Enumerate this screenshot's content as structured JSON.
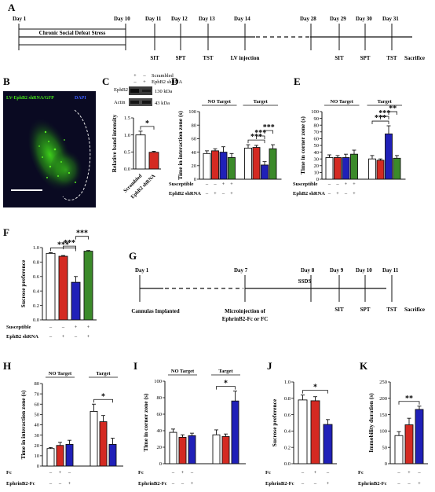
{
  "colors": {
    "white": "#ffffff",
    "red": "#d42a22",
    "blue": "#2020b8",
    "green": "#3b8a2a",
    "axis": "#111111",
    "micro_bg": "#0a0a22",
    "micro_green": "#43e019"
  },
  "panelA": {
    "label": "A",
    "days": [
      "Day 1",
      "Day 10",
      "Day 11",
      "Day 12",
      "Day 13",
      "Day 14",
      "Day 28",
      "Day 29",
      "Day 30",
      "Day 31"
    ],
    "bar_text": "Chronic Social Defeat Stress",
    "events": [
      "SIT",
      "SPT",
      "TST",
      "LV injection",
      "SIT",
      "SPT",
      "TST",
      "Sacrifice"
    ]
  },
  "panelB": {
    "label": "B",
    "title": "LV-EphB2 shRNA/GFP",
    "dapi": "DAPI"
  },
  "panelC": {
    "label": "C",
    "rows": [
      "Scrambled",
      "EphB2 shRNA"
    ],
    "signs": [
      [
        "+",
        "–"
      ],
      [
        "–",
        "+"
      ]
    ],
    "blot_labels": [
      "EphB2",
      "Actin"
    ],
    "kda": [
      "130 kDa",
      "43 kDa"
    ],
    "sig": "*"
  },
  "panelG": {
    "label": "G",
    "days": [
      "Day 1",
      "Day 7",
      "Day 8",
      "Day 9",
      "Day 10",
      "Day 11"
    ],
    "events": [
      "Cannulas Implanted",
      "Microinjection of",
      "EphrinB2-Fc or FC",
      "SSDS",
      "SIT",
      "SPT",
      "TST",
      "Sacrifice"
    ]
  },
  "chart_data": [
    {
      "panel": "C",
      "type": "bar",
      "ylabel": "Relative band intensity",
      "ylim": [
        0,
        1.5
      ],
      "yticks": [
        0,
        0.5,
        1.0,
        1.5
      ],
      "categories": [
        "Scrambled",
        "EphB2 shRNA"
      ],
      "values": [
        1.0,
        0.49
      ],
      "errors": [
        0.11,
        0.03
      ],
      "colors": [
        "#ffffff",
        "#d42a22"
      ],
      "sig": [
        {
          "pair": [
            0,
            1
          ],
          "label": "*"
        }
      ]
    },
    {
      "panel": "D",
      "type": "bar",
      "ylabel": "Time in interaction zone (s)",
      "ylim": [
        0,
        100
      ],
      "yticks": [
        0,
        20,
        40,
        60,
        80,
        100
      ],
      "groups": [
        "NO Target",
        "Target"
      ],
      "values": [
        [
          38,
          42,
          40,
          32
        ],
        [
          46,
          47,
          21,
          45
        ]
      ],
      "errors": [
        [
          4,
          3,
          8,
          6
        ],
        [
          5,
          3,
          5,
          6
        ]
      ],
      "rows": [
        "Susceptible",
        "EphB2 shRNA"
      ],
      "signs": [
        [
          "–",
          "–",
          "+",
          "+"
        ],
        [
          "–",
          "+",
          "–",
          "+"
        ]
      ],
      "sig": [
        {
          "group": 1,
          "pair": [
            0,
            2
          ],
          "label": "***"
        },
        {
          "group": 1,
          "pair": [
            1,
            2
          ],
          "label": "***"
        },
        {
          "group": 1,
          "pair": [
            2,
            3
          ],
          "label": "***"
        }
      ]
    },
    {
      "panel": "E",
      "type": "bar",
      "ylabel": "Time in corner zone (s)",
      "ylim": [
        0,
        100
      ],
      "yticks": [
        0,
        10,
        20,
        30,
        40,
        50,
        60,
        70,
        80,
        90,
        100
      ],
      "groups": [
        "NO Target",
        "Target"
      ],
      "values": [
        [
          32,
          32,
          32,
          37
        ],
        [
          30,
          28,
          67,
          31
        ]
      ],
      "errors": [
        [
          4,
          3,
          5,
          6
        ],
        [
          5,
          2,
          12,
          4
        ]
      ],
      "rows": [
        "Susceptible",
        "EphB2 shRNA"
      ],
      "signs": [
        [
          "–",
          "–",
          "+",
          "+"
        ],
        [
          "–",
          "+",
          "–",
          "+"
        ]
      ],
      "sig": [
        {
          "group": 1,
          "pair": [
            0,
            2
          ],
          "label": "***"
        },
        {
          "group": 1,
          "pair": [
            1,
            2
          ],
          "label": "***"
        },
        {
          "group": 1,
          "pair": [
            2,
            3
          ],
          "label": "**"
        }
      ]
    },
    {
      "panel": "F",
      "type": "bar",
      "ylabel": "Sucrose preference",
      "ylim": [
        0,
        1.0
      ],
      "yticks": [
        0,
        0.2,
        0.4,
        0.6,
        0.8,
        1.0
      ],
      "values": [
        0.92,
        0.88,
        0.52,
        0.95
      ],
      "errors": [
        0.01,
        0.01,
        0.08,
        0.01
      ],
      "colors": [
        "#ffffff",
        "#d42a22",
        "#2020b8",
        "#3b8a2a"
      ],
      "rows": [
        "Susceptible",
        "EphB2 shRNA"
      ],
      "signs": [
        [
          "–",
          "–",
          "+",
          "+"
        ],
        [
          "–",
          "+",
          "–",
          "+"
        ]
      ],
      "sig": [
        {
          "pair": [
            0,
            2
          ],
          "label": "***"
        },
        {
          "pair": [
            1,
            2
          ],
          "label": "***"
        },
        {
          "pair": [
            2,
            3
          ],
          "label": "***"
        }
      ]
    },
    {
      "panel": "H",
      "type": "bar",
      "ylabel": "Time in interaction zone (s)",
      "ylim": [
        0,
        80
      ],
      "yticks": [
        0,
        10,
        20,
        30,
        40,
        50,
        60,
        70,
        80
      ],
      "groups": [
        "NO Target",
        "Target"
      ],
      "values": [
        [
          17,
          20,
          21
        ],
        [
          53,
          43,
          21
        ]
      ],
      "errors": [
        [
          1,
          3,
          4
        ],
        [
          7,
          6,
          6
        ]
      ],
      "rows": [
        "Fc",
        "EphrinB2-Fc"
      ],
      "signs": [
        [
          "–",
          "+",
          "–"
        ],
        [
          "–",
          "–",
          "+"
        ]
      ],
      "sig": [
        {
          "group": 1,
          "pair": [
            0,
            2
          ],
          "label": "*"
        }
      ]
    },
    {
      "panel": "I",
      "type": "bar",
      "ylabel": "Time in corner zone (s)",
      "ylim": [
        0,
        100
      ],
      "yticks": [
        0,
        20,
        40,
        60,
        80,
        100
      ],
      "groups": [
        "NO Target",
        "Target"
      ],
      "values": [
        [
          38,
          32,
          34
        ],
        [
          35,
          33,
          76
        ]
      ],
      "errors": [
        [
          4,
          3,
          3
        ],
        [
          6,
          3,
          12
        ]
      ],
      "rows": [
        "Fc",
        "EphrinB2-Fc"
      ],
      "signs": [
        [
          "–",
          "+",
          "–"
        ],
        [
          "–",
          "–",
          "+"
        ]
      ],
      "sig": [
        {
          "group": 1,
          "pair": [
            0,
            2
          ],
          "label": "*"
        }
      ]
    },
    {
      "panel": "J",
      "type": "bar",
      "ylabel": "Sucrose preference",
      "ylim": [
        0,
        1.0
      ],
      "yticks": [
        0.0,
        0.2,
        0.4,
        0.6,
        0.8,
        1.0
      ],
      "values": [
        0.78,
        0.77,
        0.48
      ],
      "errors": [
        0.06,
        0.05,
        0.06
      ],
      "colors": [
        "#ffffff",
        "#d42a22",
        "#2020b8"
      ],
      "rows": [
        "Fc",
        "EphrinB2-Fc"
      ],
      "signs": [
        [
          "–",
          "+",
          "–"
        ],
        [
          "–",
          "–",
          "+"
        ]
      ],
      "sig": [
        {
          "pair": [
            0,
            2
          ],
          "label": "*"
        }
      ]
    },
    {
      "panel": "K",
      "type": "bar",
      "ylabel": "Immobility duration (s)",
      "ylim": [
        0,
        250
      ],
      "yticks": [
        0,
        50,
        100,
        150,
        200,
        250
      ],
      "values": [
        86,
        119,
        166
      ],
      "errors": [
        12,
        20,
        10
      ],
      "colors": [
        "#ffffff",
        "#d42a22",
        "#2020b8"
      ],
      "rows": [
        "Fc",
        "EphrinB2-Fc"
      ],
      "signs": [
        [
          "–",
          "+",
          "–"
        ],
        [
          "–",
          "–",
          "+"
        ]
      ],
      "sig": [
        {
          "pair": [
            0,
            2
          ],
          "label": "**"
        }
      ]
    }
  ]
}
